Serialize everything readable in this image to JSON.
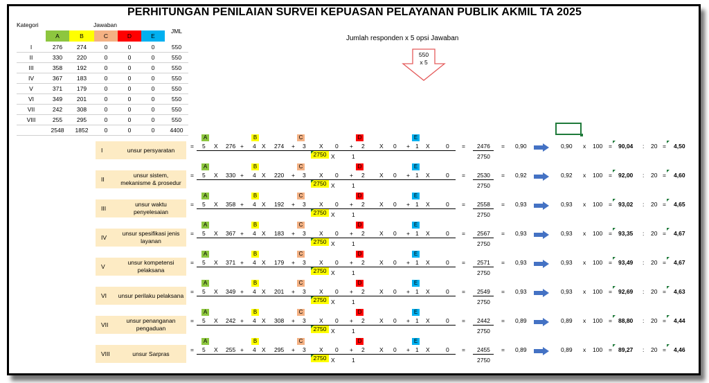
{
  "title": "PERHITUNGAN PENILAIAN SURVEI KEPUASAN PELAYANAN PUBLIK AKMIL TA 2025",
  "respondent_note": "Jumlah responden x 5 opsi Jawaban",
  "arrow_label": {
    "line1": "550",
    "line2": "x 5"
  },
  "colors": {
    "A": "#8dc63f",
    "B": "#ffff00",
    "C": "#f4b183",
    "D": "#ff0000",
    "E": "#00b0f0",
    "label_bg": "#fdebc4",
    "arrow": "#4472c4"
  },
  "summary_table": {
    "kategori_header": "Kategori",
    "jawaban_header": "Jawaban",
    "jml_header": "JML",
    "options": [
      "A",
      "B",
      "C",
      "D",
      "E"
    ],
    "rows": [
      {
        "kat": "I",
        "vals": [
          "276",
          "274",
          "0",
          "0",
          "0"
        ],
        "jml": "550"
      },
      {
        "kat": "II",
        "vals": [
          "330",
          "220",
          "0",
          "0",
          "0"
        ],
        "jml": "550"
      },
      {
        "kat": "III",
        "vals": [
          "358",
          "192",
          "0",
          "0",
          "0"
        ],
        "jml": "550"
      },
      {
        "kat": "IV",
        "vals": [
          "367",
          "183",
          "0",
          "0",
          "0"
        ],
        "jml": "550"
      },
      {
        "kat": "V",
        "vals": [
          "371",
          "179",
          "0",
          "0",
          "0"
        ],
        "jml": "550"
      },
      {
        "kat": "VI",
        "vals": [
          "349",
          "201",
          "0",
          "0",
          "0"
        ],
        "jml": "550"
      },
      {
        "kat": "VII",
        "vals": [
          "242",
          "308",
          "0",
          "0",
          "0"
        ],
        "jml": "550"
      },
      {
        "kat": "VIII",
        "vals": [
          "255",
          "295",
          "0",
          "0",
          "0"
        ],
        "jml": "550"
      }
    ],
    "total": {
      "kat": "",
      "vals": [
        "2548",
        "1852",
        "0",
        "0",
        "0"
      ],
      "jml": "4400"
    }
  },
  "calc_rows": [
    {
      "num": "I",
      "name": "unsur persyaratan",
      "a": "276",
      "b": "274",
      "c": "0",
      "d": "0",
      "e": "0",
      "sum": "2476",
      "den": "2750",
      "ratio": "0,90",
      "ratio2": "0,90",
      "pct": "90,04",
      "score": "4,50"
    },
    {
      "num": "II",
      "name": "unsur sistem, mekanisme & prosedur",
      "a": "330",
      "b": "220",
      "c": "0",
      "d": "0",
      "e": "0",
      "sum": "2530",
      "den": "2750",
      "ratio": "0,92",
      "ratio2": "0,92",
      "pct": "92,00",
      "score": "4,60"
    },
    {
      "num": "III",
      "name": "unsur waktu penyelesaian",
      "a": "358",
      "b": "192",
      "c": "0",
      "d": "0",
      "e": "0",
      "sum": "2558",
      "den": "2750",
      "ratio": "0,93",
      "ratio2": "0,93",
      "pct": "93,02",
      "score": "4,65"
    },
    {
      "num": "IV",
      "name": "unsur spesifikasi jenis layanan",
      "a": "367",
      "b": "183",
      "c": "0",
      "d": "0",
      "e": "0",
      "sum": "2567",
      "den": "2750",
      "ratio": "0,93",
      "ratio2": "0,93",
      "pct": "93,35",
      "score": "4,67"
    },
    {
      "num": "V",
      "name": "unsur kompetensi pelaksana",
      "a": "371",
      "b": "179",
      "c": "0",
      "d": "0",
      "e": "0",
      "sum": "2571",
      "den": "2750",
      "ratio": "0,93",
      "ratio2": "0,93",
      "pct": "93,49",
      "score": "4,67"
    },
    {
      "num": "VI",
      "name": "unsur perilaku pelaksana",
      "a": "349",
      "b": "201",
      "c": "0",
      "d": "0",
      "e": "0",
      "sum": "2549",
      "den": "2750",
      "ratio": "0,93",
      "ratio2": "0,93",
      "pct": "92,69",
      "score": "4,63"
    },
    {
      "num": "VII",
      "name": "unsur penanganan pengaduan",
      "a": "242",
      "b": "308",
      "c": "0",
      "d": "0",
      "e": "0",
      "sum": "2442",
      "den": "2750",
      "ratio": "0,89",
      "ratio2": "0,89",
      "pct": "88,80",
      "score": "4,44"
    },
    {
      "num": "VIII",
      "name": "unsur Sarpras",
      "a": "255",
      "b": "295",
      "c": "0",
      "d": "0",
      "e": "0",
      "sum": "2455",
      "den": "2750",
      "ratio": "0,89",
      "ratio2": "0,89",
      "pct": "89,27",
      "score": "4,46"
    }
  ],
  "calc_constants": {
    "w5": "5",
    "w4": "4",
    "w3": "3",
    "w2": "2",
    "w1": "1",
    "x": "X",
    "plus": "+",
    "eq": "=",
    "times": "x",
    "colon": ":",
    "multiplier": "100",
    "divisor": "20",
    "denominator_box": "2750",
    "denominator_mult": "1"
  }
}
